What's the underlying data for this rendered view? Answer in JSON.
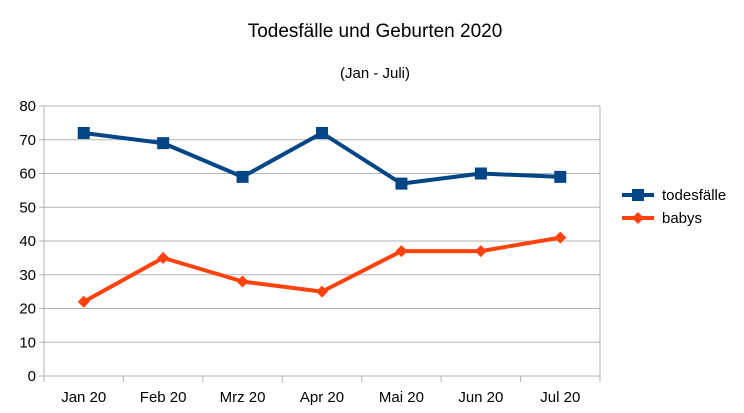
{
  "chart_data": {
    "type": "line",
    "title": "Todesfälle und Geburten 2020",
    "subtitle": "(Jan - Juli)",
    "categories": [
      "Jan 20",
      "Feb 20",
      "Mrz 20",
      "Apr 20",
      "Mai 20",
      "Jun 20",
      "Jul 20"
    ],
    "ylim": [
      0,
      80
    ],
    "yticks": [
      0,
      10,
      20,
      30,
      40,
      50,
      60,
      70,
      80
    ],
    "grid": true,
    "legend_position": "right",
    "series": [
      {
        "name": "todesfälle",
        "values": [
          72,
          69,
          59,
          72,
          57,
          60,
          59
        ],
        "color": "#004586",
        "marker": "square"
      },
      {
        "name": "babys",
        "values": [
          22,
          35,
          28,
          25,
          37,
          37,
          41
        ],
        "color": "#ff420e",
        "marker": "diamond"
      }
    ]
  }
}
